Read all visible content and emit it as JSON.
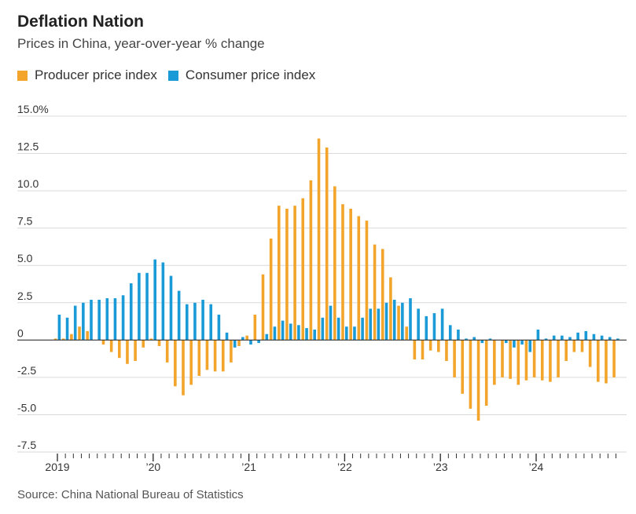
{
  "chart_data": {
    "type": "bar",
    "title": "Deflation Nation",
    "subtitle": "Prices in China, year-over-year % change",
    "source": "Source: China National Bureau of Statistics",
    "ylim": [
      -7.5,
      15.0
    ],
    "y_ticks": [
      {
        "value": 15.0,
        "label": "15.0%"
      },
      {
        "value": 12.5,
        "label": "12.5"
      },
      {
        "value": 10.0,
        "label": "10.0"
      },
      {
        "value": 7.5,
        "label": "7.5"
      },
      {
        "value": 5.0,
        "label": "5.0"
      },
      {
        "value": 2.5,
        "label": "2.5"
      },
      {
        "value": 0,
        "label": "0"
      },
      {
        "value": -2.5,
        "label": "-2.5"
      },
      {
        "value": -5.0,
        "label": "-5.0"
      },
      {
        "value": -7.5,
        "label": "-7.5"
      }
    ],
    "x_labels": [
      {
        "index": 0,
        "label": "2019"
      },
      {
        "index": 12,
        "label": "’20"
      },
      {
        "index": 24,
        "label": "’21"
      },
      {
        "index": 36,
        "label": "’22"
      },
      {
        "index": 48,
        "label": "’23"
      },
      {
        "index": 60,
        "label": "’24"
      }
    ],
    "months": 71,
    "legend_position": "top-left",
    "grid": true,
    "series": [
      {
        "name": "Producer price index",
        "color": "#f2a42b",
        "values": [
          0.1,
          0.1,
          0.4,
          0.9,
          0.6,
          0.0,
          -0.3,
          -0.8,
          -1.2,
          -1.6,
          -1.4,
          -0.5,
          0.1,
          -0.4,
          -1.5,
          -3.1,
          -3.7,
          -3.0,
          -2.4,
          -2.0,
          -2.1,
          -2.1,
          -1.5,
          -0.4,
          0.3,
          1.7,
          4.4,
          6.8,
          9.0,
          8.8,
          9.0,
          9.5,
          10.7,
          13.5,
          12.9,
          10.3,
          9.1,
          8.8,
          8.3,
          8.0,
          6.4,
          6.1,
          4.2,
          2.3,
          0.9,
          -1.3,
          -1.3,
          -0.7,
          -0.8,
          -1.4,
          -2.5,
          -3.6,
          -4.6,
          -5.4,
          -4.4,
          -3.0,
          -2.5,
          -2.6,
          -3.0,
          -2.7,
          -2.5,
          -2.7,
          -2.8,
          -2.5,
          -1.4,
          -0.8,
          -0.8,
          -1.8,
          -2.8,
          -2.9,
          -2.5
        ]
      },
      {
        "name": "Consumer price index",
        "color": "#1a9bd7",
        "values": [
          1.7,
          1.5,
          2.3,
          2.5,
          2.7,
          2.7,
          2.8,
          2.8,
          3.0,
          3.8,
          4.5,
          4.5,
          5.4,
          5.2,
          4.3,
          3.3,
          2.4,
          2.5,
          2.7,
          2.4,
          1.7,
          0.5,
          -0.5,
          0.2,
          -0.3,
          -0.2,
          0.4,
          0.9,
          1.3,
          1.1,
          1.0,
          0.8,
          0.7,
          1.5,
          2.3,
          1.5,
          0.9,
          0.9,
          1.5,
          2.1,
          2.1,
          2.5,
          2.7,
          2.5,
          2.8,
          2.1,
          1.6,
          1.8,
          2.1,
          1.0,
          0.7,
          0.1,
          0.2,
          -0.2,
          0.1,
          0.0,
          -0.2,
          -0.5,
          -0.3,
          -0.8,
          0.7,
          0.1,
          0.3,
          0.3,
          0.2,
          0.5,
          0.6,
          0.4,
          0.3,
          0.2,
          0.1
        ]
      }
    ]
  }
}
